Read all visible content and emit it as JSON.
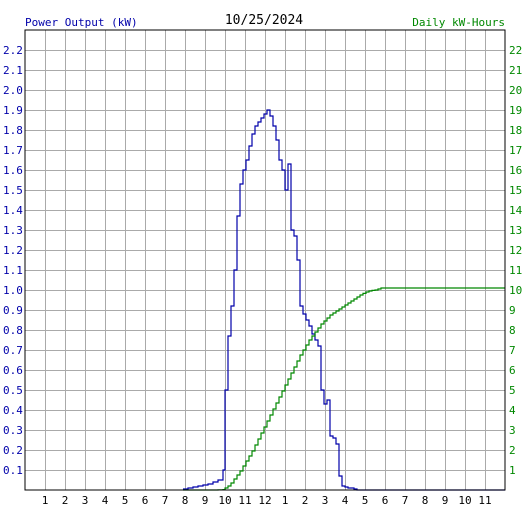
{
  "chart_data": {
    "type": "line",
    "title": "10/25/2024",
    "left_axis_label": "Power Output (kW)",
    "right_axis_label": "Daily kW-Hours",
    "colors": {
      "power": "#0000aa",
      "energy": "#008800",
      "grid": "#aaaaaa",
      "frame": "#000000"
    },
    "grid": true,
    "x_range": [
      0,
      24
    ],
    "y_left_range": [
      0,
      2.3
    ],
    "y_right_range": [
      0,
      23
    ],
    "x_tick_labels": [
      "1",
      "2",
      "3",
      "4",
      "5",
      "6",
      "7",
      "8",
      "9",
      "10",
      "11",
      "12",
      "1",
      "2",
      "3",
      "4",
      "5",
      "6",
      "7",
      "8",
      "9",
      "10",
      "11"
    ],
    "y_left_tick_labels": [
      "0.1",
      "0.2",
      "0.3",
      "0.4",
      "0.5",
      "0.6",
      "0.7",
      "0.8",
      "0.9",
      "1.0",
      "1.1",
      "1.2",
      "1.3",
      "1.4",
      "1.5",
      "1.6",
      "1.7",
      "1.8",
      "1.9",
      "2.0",
      "2.1",
      "2.2"
    ],
    "y_right_tick_labels": [
      "1",
      "2",
      "3",
      "4",
      "5",
      "6",
      "7",
      "8",
      "9",
      "10",
      "11",
      "12",
      "13",
      "14",
      "15",
      "16",
      "17",
      "18",
      "19",
      "20",
      "21",
      "22"
    ],
    "series": [
      {
        "name": "Power Output (kW)",
        "axis": "left",
        "step": true,
        "x": [
          7.9,
          8.15,
          8.4,
          8.65,
          8.9,
          9.15,
          9.4,
          9.65,
          9.9,
          10.0,
          10.15,
          10.3,
          10.45,
          10.6,
          10.75,
          10.9,
          11.05,
          11.2,
          11.35,
          11.5,
          11.65,
          11.8,
          11.95,
          12.1,
          12.25,
          12.4,
          12.55,
          12.7,
          12.85,
          13.0,
          13.15,
          13.3,
          13.45,
          13.6,
          13.75,
          13.9,
          14.05,
          14.2,
          14.35,
          14.5,
          14.65,
          14.8,
          14.95,
          15.1,
          15.25,
          15.4,
          15.55,
          15.7,
          15.85,
          16.0,
          16.15,
          16.3,
          16.45,
          16.6,
          16.75,
          16.9,
          17.05,
          17.2,
          17.35,
          17.5,
          17.65,
          17.8,
          17.95,
          18.1,
          18.25,
          18.4,
          18.55,
          18.7,
          18.85,
          19.0,
          19.15,
          19.3,
          19.45,
          19.6,
          19.75,
          19.9,
          20.05,
          20.2,
          20.35,
          20.5,
          20.65,
          20.8,
          20.95,
          21.1,
          21.25,
          21.4,
          21.55,
          21.7,
          21.85,
          22.0,
          22.15,
          22.3,
          22.45,
          22.6,
          22.75,
          22.9,
          23.05,
          23.2,
          23.35,
          23.5,
          23.65,
          23.8,
          23.95
        ],
        "y": [
          0.005,
          0.01,
          0.015,
          0.02,
          0.025,
          0.03,
          0.04,
          0.05,
          0.1,
          0.5,
          0.77,
          0.92,
          1.1,
          1.37,
          1.53,
          1.6,
          1.65,
          1.72,
          1.78,
          1.82,
          1.84,
          1.86,
          1.88,
          1.9,
          1.87,
          1.82,
          1.75,
          1.65,
          1.6,
          1.5,
          1.63,
          1.3,
          1.27,
          1.15,
          0.92,
          0.88,
          0.85,
          0.82,
          0.78,
          0.75,
          0.72,
          0.5,
          0.43,
          0.45,
          0.27,
          0.26,
          0.23,
          0.07,
          0.02,
          0.015,
          0.01,
          0.01,
          0.005,
          0,
          0,
          0,
          0,
          0,
          0,
          0,
          0,
          0,
          0,
          0,
          0,
          0,
          0,
          0,
          0,
          0,
          0,
          0,
          0,
          0,
          0,
          0,
          0,
          0,
          0,
          0,
          0,
          0,
          0,
          0,
          0,
          0,
          0,
          0,
          0,
          0,
          0,
          0,
          0,
          0,
          0,
          0,
          0,
          0,
          0,
          0,
          0,
          0,
          0
        ]
      },
      {
        "name": "Daily kW-Hours",
        "axis": "right",
        "step": true,
        "x": [
          7.9,
          8.15,
          8.4,
          8.65,
          8.9,
          9.15,
          9.4,
          9.65,
          9.9,
          10.0,
          10.15,
          10.3,
          10.45,
          10.6,
          10.75,
          10.9,
          11.05,
          11.2,
          11.35,
          11.5,
          11.65,
          11.8,
          11.95,
          12.1,
          12.25,
          12.4,
          12.55,
          12.7,
          12.85,
          13.0,
          13.15,
          13.3,
          13.45,
          13.6,
          13.75,
          13.9,
          14.05,
          14.2,
          14.35,
          14.5,
          14.65,
          14.8,
          14.95,
          15.1,
          15.25,
          15.4,
          15.55,
          15.7,
          15.85,
          16.0,
          16.15,
          16.3,
          16.45,
          16.6,
          16.75,
          16.9,
          17.05,
          17.2,
          17.35,
          17.5,
          17.65,
          17.8,
          17.95,
          18.1,
          18.25,
          18.4,
          18.55,
          18.7,
          18.85,
          19.0,
          19.15,
          19.3,
          19.45,
          19.6,
          19.75,
          19.9,
          20.05,
          20.2,
          20.35,
          20.5,
          20.65,
          20.8,
          20.95,
          21.1,
          21.25,
          21.4,
          21.55,
          21.7,
          21.85,
          22.0,
          22.15,
          22.3,
          22.45,
          22.6,
          22.75,
          22.9,
          23.05,
          23.2,
          23.35,
          23.5,
          23.65,
          23.8,
          23.95
        ],
        "y": [
          0,
          0,
          0,
          0,
          0,
          0,
          0,
          0.01,
          0.02,
          0.1,
          0.2,
          0.35,
          0.55,
          0.75,
          0.95,
          1.2,
          1.45,
          1.7,
          1.95,
          2.25,
          2.55,
          2.85,
          3.15,
          3.45,
          3.75,
          4.05,
          4.35,
          4.65,
          4.95,
          5.25,
          5.55,
          5.85,
          6.15,
          6.45,
          6.75,
          7.0,
          7.25,
          7.5,
          7.7,
          7.9,
          8.1,
          8.3,
          8.45,
          8.6,
          8.75,
          8.85,
          8.95,
          9.05,
          9.15,
          9.25,
          9.35,
          9.45,
          9.55,
          9.65,
          9.75,
          9.83,
          9.9,
          9.95,
          9.98,
          10.0,
          10.05,
          10.1,
          10.1,
          10.1,
          10.1,
          10.1,
          10.1,
          10.1,
          10.1,
          10.1,
          10.1,
          10.1,
          10.1,
          10.1,
          10.1,
          10.1,
          10.1,
          10.1,
          10.1,
          10.1,
          10.1,
          10.1,
          10.1,
          10.1,
          10.1,
          10.1,
          10.1,
          10.1,
          10.1,
          10.1,
          10.1,
          10.1,
          10.1,
          10.1,
          10.1,
          10.1,
          10.1,
          10.1,
          10.1,
          10.1,
          10.1,
          10.1,
          10.1
        ]
      }
    ]
  }
}
